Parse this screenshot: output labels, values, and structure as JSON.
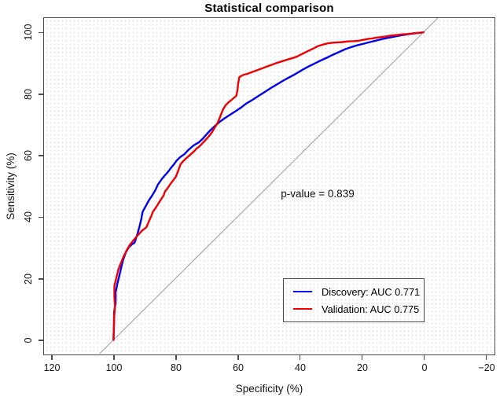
{
  "title": "Statistical comparison",
  "annotation": {
    "p_value_label": "p-value = 0.839"
  },
  "axes": {
    "x": {
      "label": "Specificity (%)",
      "tick_labels": [
        "120",
        "100",
        "80",
        "60",
        "40",
        "20",
        "0",
        "−20"
      ]
    },
    "y": {
      "label": "Sensitivity (%)",
      "tick_labels": [
        "0",
        "20",
        "40",
        "60",
        "80",
        "100"
      ]
    }
  },
  "legend": {
    "items": [
      {
        "label": "Discovery: AUC 0.771",
        "color": "#0000EE"
      },
      {
        "label": "Validation: AUC 0.775",
        "color": "#EE0000"
      }
    ]
  },
  "colors": {
    "discovery": "#0000EE",
    "validation": "#EE0000",
    "diagonal": "#ABABAB",
    "frame": "#4a4a4a"
  },
  "chart_data": {
    "type": "line",
    "title": "Statistical comparison",
    "xlabel": "Specificity (%)",
    "ylabel": "Sensitivity (%)",
    "x_ticks": [
      120,
      100,
      80,
      60,
      40,
      20,
      0,
      -20
    ],
    "y_ticks": [
      0,
      20,
      40,
      60,
      80,
      100
    ],
    "x_reversed": true,
    "grid": "fine-dotted",
    "legend_position": "lower-right-inside",
    "annotations": [
      {
        "text": "p-value = 0.839",
        "x": 53,
        "y": 47
      }
    ],
    "series": [
      {
        "id": "reference-diagonal",
        "name": "chance line (sens = 100 - spec)",
        "color": "#ABABAB",
        "width": 1.2,
        "points": [
          [
            104.9,
            -4.9
          ],
          [
            -5.1,
            105.1
          ]
        ]
      },
      {
        "id": "discovery-curve",
        "name": "Discovery: AUC 0.771",
        "auc": 0.771,
        "color": "#0000EE",
        "width": 2.4,
        "points": [
          [
            100,
            0
          ],
          [
            99.8,
            5.5
          ],
          [
            99.8,
            9
          ],
          [
            99.3,
            12
          ],
          [
            99.3,
            15.5
          ],
          [
            98.7,
            18.5
          ],
          [
            98.1,
            21
          ],
          [
            97.5,
            23.5
          ],
          [
            96.9,
            26
          ],
          [
            96,
            28.5
          ],
          [
            95,
            30.2
          ],
          [
            93.9,
            31.2
          ],
          [
            93.2,
            31.6
          ],
          [
            92.4,
            34
          ],
          [
            91.7,
            36.5
          ],
          [
            91.1,
            39
          ],
          [
            90.6,
            41.6
          ],
          [
            89.6,
            43.5
          ],
          [
            88.5,
            45.5
          ],
          [
            87.7,
            46.7
          ],
          [
            86.6,
            48.5
          ],
          [
            85.6,
            50.6
          ],
          [
            84.4,
            52.3
          ],
          [
            83.4,
            53.5
          ],
          [
            82.6,
            54.4
          ],
          [
            81.4,
            56
          ],
          [
            80.4,
            57.2
          ],
          [
            79.7,
            58.2
          ],
          [
            78.6,
            59.3
          ],
          [
            77.1,
            60.4
          ],
          [
            75.8,
            61.8
          ],
          [
            74.2,
            63.2
          ],
          [
            72.5,
            64.2
          ],
          [
            71.3,
            65.3
          ],
          [
            70,
            66.8
          ],
          [
            68.6,
            68.3
          ],
          [
            67.2,
            69.6
          ],
          [
            65.7,
            70.9
          ],
          [
            64.2,
            72
          ],
          [
            62.5,
            73.1
          ],
          [
            60.8,
            74.2
          ],
          [
            59,
            75.4
          ],
          [
            57.2,
            76.8
          ],
          [
            55.2,
            78
          ],
          [
            53.2,
            79.3
          ],
          [
            51.2,
            80.6
          ],
          [
            49.2,
            81.9
          ],
          [
            47.2,
            83.1
          ],
          [
            45.2,
            84.3
          ],
          [
            43.2,
            85.4
          ],
          [
            41.2,
            86.5
          ],
          [
            39.2,
            87.7
          ],
          [
            37.2,
            88.8
          ],
          [
            35.2,
            89.8
          ],
          [
            33.2,
            90.8
          ],
          [
            31.2,
            91.7
          ],
          [
            29.2,
            92.7
          ],
          [
            27.2,
            93.6
          ],
          [
            25.2,
            94.5
          ],
          [
            23.2,
            95.2
          ],
          [
            21.2,
            95.8
          ],
          [
            19.2,
            96.3
          ],
          [
            17.2,
            96.8
          ],
          [
            15.2,
            97.3
          ],
          [
            13.2,
            97.8
          ],
          [
            11.2,
            98.2
          ],
          [
            9.2,
            98.6
          ],
          [
            7.2,
            99
          ],
          [
            5.2,
            99.3
          ],
          [
            3.2,
            99.6
          ],
          [
            1.2,
            99.8
          ],
          [
            0,
            100
          ]
        ]
      },
      {
        "id": "validation-curve",
        "name": "Validation: AUC 0.775",
        "auc": 0.775,
        "color": "#EE0000",
        "width": 2.4,
        "points": [
          [
            100,
            0
          ],
          [
            99.8,
            7
          ],
          [
            99.5,
            11
          ],
          [
            99.7,
            14
          ],
          [
            99.7,
            17.5
          ],
          [
            99,
            20.5
          ],
          [
            98.4,
            23
          ],
          [
            97.6,
            25
          ],
          [
            96.8,
            27
          ],
          [
            95.8,
            29
          ],
          [
            94.8,
            30.8
          ],
          [
            93.6,
            32.3
          ],
          [
            92.2,
            34
          ],
          [
            90.8,
            35.5
          ],
          [
            89.4,
            36.6
          ],
          [
            88.6,
            38.5
          ],
          [
            87.8,
            40.3
          ],
          [
            87.3,
            41.6
          ],
          [
            86.4,
            42.9
          ],
          [
            85.6,
            44.2
          ],
          [
            84.6,
            45.8
          ],
          [
            83.8,
            47
          ],
          [
            83.4,
            48.2
          ],
          [
            82.5,
            49.4
          ],
          [
            81.7,
            50.6
          ],
          [
            80.8,
            51.8
          ],
          [
            79.9,
            53
          ],
          [
            79.2,
            54.8
          ],
          [
            78.4,
            57
          ],
          [
            77.6,
            58
          ],
          [
            76.6,
            59
          ],
          [
            75.9,
            59.6
          ],
          [
            74.8,
            60.6
          ],
          [
            73.9,
            61.4
          ],
          [
            73.3,
            62.1
          ],
          [
            72.2,
            63
          ],
          [
            71.2,
            64
          ],
          [
            70.3,
            65
          ],
          [
            69.3,
            66.1
          ],
          [
            68.3,
            67.4
          ],
          [
            67.4,
            68.9
          ],
          [
            66.5,
            70.4
          ],
          [
            65.8,
            72
          ],
          [
            65.2,
            73.6
          ],
          [
            64.6,
            75
          ],
          [
            63.8,
            76.3
          ],
          [
            62.8,
            77.3
          ],
          [
            61.6,
            78.3
          ],
          [
            60.4,
            79.3
          ],
          [
            60,
            81.2
          ],
          [
            59.8,
            83.3
          ],
          [
            59.4,
            85.4
          ],
          [
            58.2,
            86.1
          ],
          [
            56.8,
            86.5
          ],
          [
            55.4,
            87
          ],
          [
            53.8,
            87.6
          ],
          [
            52.2,
            88.2
          ],
          [
            50.6,
            88.8
          ],
          [
            49,
            89.4
          ],
          [
            47.4,
            90
          ],
          [
            45.8,
            90.5
          ],
          [
            44.2,
            91
          ],
          [
            42.6,
            91.5
          ],
          [
            41,
            92
          ],
          [
            39.6,
            92.7
          ],
          [
            38.2,
            93.4
          ],
          [
            36.8,
            94.1
          ],
          [
            35.4,
            94.8
          ],
          [
            34,
            95.5
          ],
          [
            32.4,
            96
          ],
          [
            30.8,
            96.4
          ],
          [
            29.2,
            96.6
          ],
          [
            27.6,
            96.7
          ],
          [
            26,
            96.8
          ],
          [
            24.4,
            97
          ],
          [
            22.8,
            97.1
          ],
          [
            21.2,
            97.2
          ],
          [
            19.6,
            97.5
          ],
          [
            18,
            97.8
          ],
          [
            16.4,
            98
          ],
          [
            14.8,
            98.3
          ],
          [
            13.2,
            98.5
          ],
          [
            11.6,
            98.7
          ],
          [
            10,
            99
          ],
          [
            8.4,
            99.1
          ],
          [
            6.8,
            99.3
          ],
          [
            5.2,
            99.4
          ],
          [
            3.6,
            99.6
          ],
          [
            2,
            99.8
          ],
          [
            0.5,
            99.9
          ],
          [
            0,
            100
          ]
        ]
      }
    ]
  }
}
